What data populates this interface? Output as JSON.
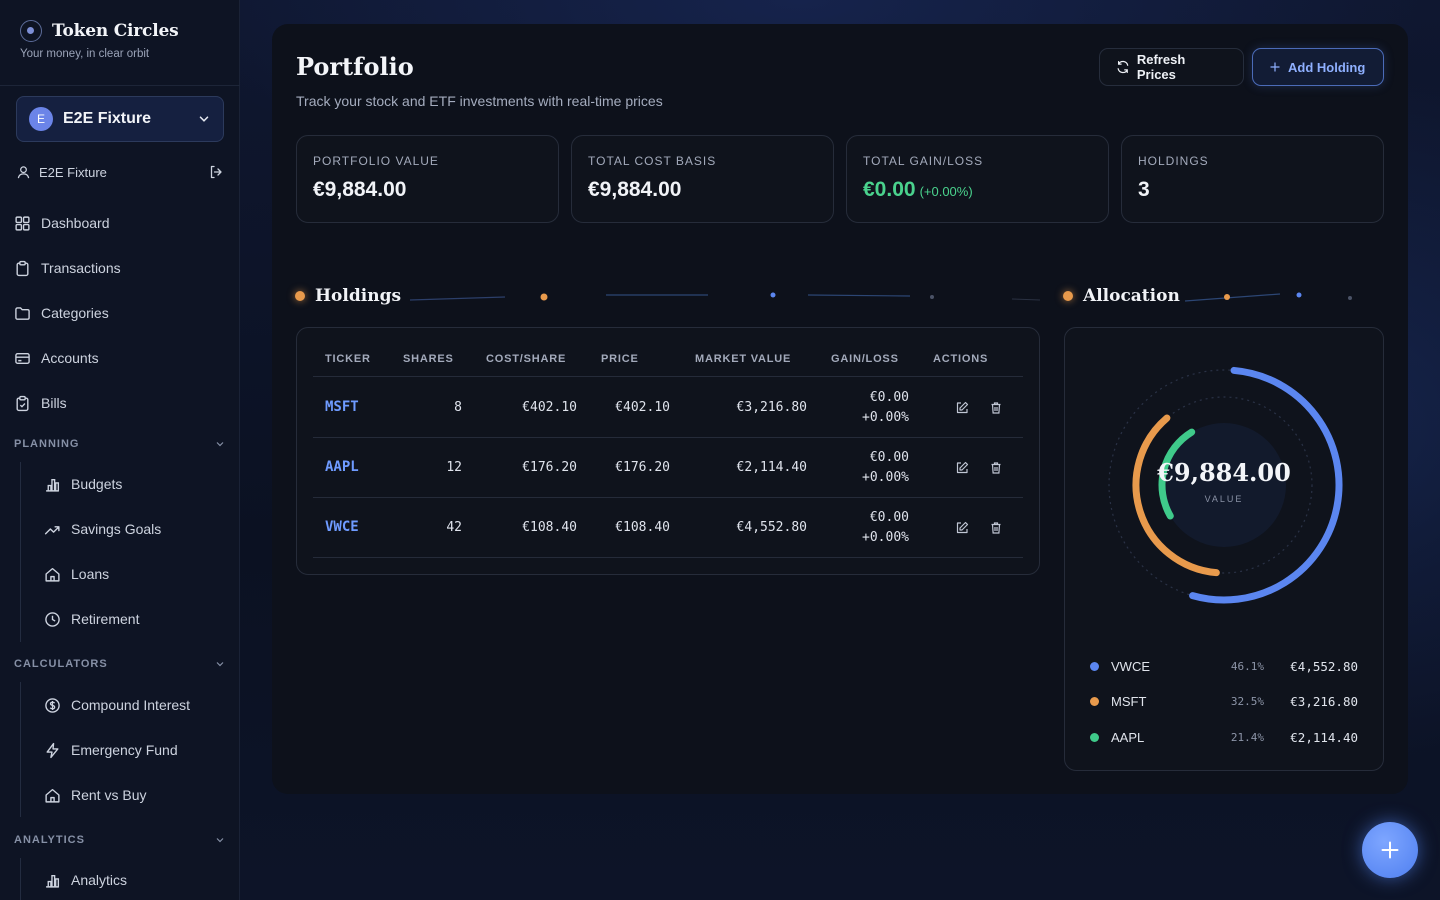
{
  "brand": {
    "name": "Token Circles",
    "tagline": "Your money, in clear orbit"
  },
  "profile": {
    "initial": "E",
    "name": "E2E Fixture"
  },
  "user": {
    "name": "E2E Fixture"
  },
  "nav": {
    "top": [
      {
        "label": "Dashboard",
        "icon": "grid-icon"
      },
      {
        "label": "Transactions",
        "icon": "clipboard-icon"
      },
      {
        "label": "Categories",
        "icon": "folder-icon"
      },
      {
        "label": "Accounts",
        "icon": "card-icon"
      },
      {
        "label": "Bills",
        "icon": "receipt-icon"
      }
    ],
    "planning": {
      "title": "PLANNING",
      "items": [
        {
          "label": "Budgets"
        },
        {
          "label": "Savings Goals"
        },
        {
          "label": "Loans"
        },
        {
          "label": "Retirement"
        }
      ]
    },
    "calculators": {
      "title": "CALCULATORS",
      "items": [
        {
          "label": "Compound Interest"
        },
        {
          "label": "Emergency Fund"
        },
        {
          "label": "Rent vs Buy"
        }
      ]
    },
    "analytics": {
      "title": "ANALYTICS",
      "items": [
        {
          "label": "Analytics"
        }
      ]
    }
  },
  "header": {
    "title": "Portfolio",
    "subtitle": "Track your stock and ETF investments with real-time prices",
    "refresh_label": "Refresh Prices",
    "add_label": "Add Holding"
  },
  "stats": [
    {
      "label": "PORTFOLIO VALUE",
      "value": "€9,884.00"
    },
    {
      "label": "TOTAL COST BASIS",
      "value": "€9,884.00"
    },
    {
      "label": "TOTAL GAIN/LOSS",
      "value": "€0.00",
      "pct": "(+0.00%)"
    },
    {
      "label": "HOLDINGS",
      "value": "3"
    }
  ],
  "holdings": {
    "title": "Holdings",
    "columns": [
      "TICKER",
      "SHARES",
      "COST/SHARE",
      "PRICE",
      "MARKET VALUE",
      "GAIN/LOSS",
      "ACTIONS"
    ],
    "rows": [
      {
        "ticker": "MSFT",
        "shares": "8",
        "cost": "€402.10",
        "price": "€402.10",
        "value": "€3,216.80",
        "gain": "€0.00",
        "gain_pct": "+0.00%"
      },
      {
        "ticker": "AAPL",
        "shares": "12",
        "cost": "€176.20",
        "price": "€176.20",
        "value": "€2,114.40",
        "gain": "€0.00",
        "gain_pct": "+0.00%"
      },
      {
        "ticker": "VWCE",
        "shares": "42",
        "cost": "€108.40",
        "price": "€108.40",
        "value": "€4,552.80",
        "gain": "€0.00",
        "gain_pct": "+0.00%"
      }
    ]
  },
  "allocation": {
    "title": "Allocation",
    "center_value": "€9,884.00",
    "center_label": "VALUE",
    "items": [
      {
        "name": "VWCE",
        "pct": "46.1%",
        "fraction": 0.461,
        "value": "€4,552.80",
        "color": "#5b86f0"
      },
      {
        "name": "MSFT",
        "pct": "32.5%",
        "fraction": 0.325,
        "value": "€3,216.80",
        "color": "#e89a4c"
      },
      {
        "name": "AAPL",
        "pct": "21.4%",
        "fraction": 0.214,
        "value": "€2,114.40",
        "color": "#3fca8a"
      }
    ]
  },
  "colors": {
    "accent": "#6f9bff",
    "gain": "#4ad28d",
    "orange": "#e89a4c"
  }
}
